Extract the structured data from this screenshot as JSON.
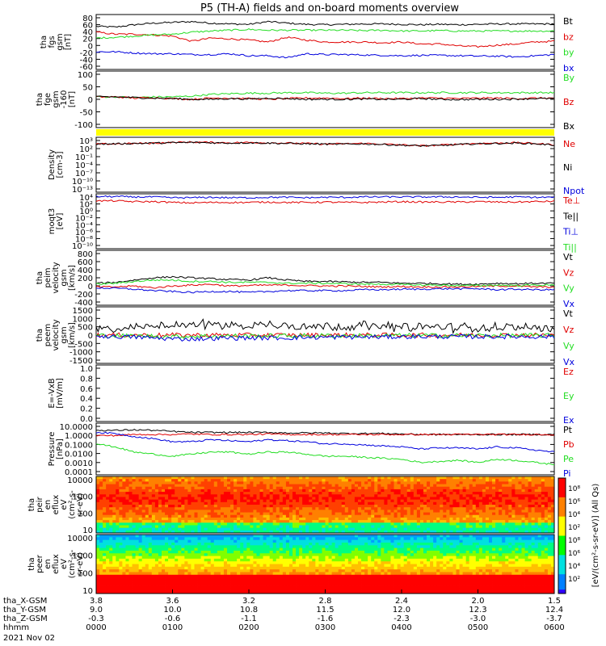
{
  "title": "P5 (TH-A) fields and on-board moments overview",
  "colors": {
    "black": "#000000",
    "red": "#e00000",
    "green": "#22dd22",
    "blue": "#0000dd",
    "yellow": "#ffff00"
  },
  "chart_data": [
    {
      "type": "line",
      "panel": "fgs",
      "ylabel": [
        "tha",
        "fgs",
        "gsm",
        "[nT]"
      ],
      "yticks": [
        "80",
        "60",
        "40",
        "20",
        "0",
        "-20",
        "-40",
        "-60"
      ],
      "ylim": [
        -60,
        80
      ],
      "series": [
        {
          "name": "Bt",
          "color": "#000000",
          "values": [
            50,
            48,
            54,
            58,
            60,
            62,
            58,
            56,
            55,
            62,
            58,
            55,
            54,
            55,
            56,
            56,
            55,
            54,
            55,
            54,
            55,
            56,
            56,
            56,
            56
          ]
        },
        {
          "name": "bz",
          "color": "#e00000",
          "values": [
            35,
            30,
            30,
            28,
            25,
            12,
            20,
            18,
            15,
            10,
            22,
            15,
            10,
            10,
            10,
            8,
            10,
            5,
            5,
            0,
            -2,
            2,
            5,
            10,
            12
          ]
        },
        {
          "name": "by",
          "color": "#22dd22",
          "values": [
            20,
            22,
            25,
            28,
            30,
            35,
            38,
            40,
            42,
            40,
            40,
            40,
            40,
            40,
            39,
            40,
            38,
            38,
            39,
            38,
            38,
            38,
            38,
            38,
            38
          ]
        },
        {
          "name": "bx",
          "color": "#0000dd",
          "values": [
            -15,
            -15,
            -18,
            -20,
            -20,
            -22,
            -22,
            -20,
            -25,
            -25,
            -30,
            -20,
            -22,
            -22,
            -23,
            -24,
            -25,
            -24,
            -24,
            -25,
            -26,
            -26,
            -28,
            -25,
            -22
          ]
        }
      ]
    },
    {
      "type": "line",
      "panel": "fge",
      "ylabel": [
        "tha",
        "fge",
        "gsm",
        "-160",
        "[nT]"
      ],
      "yticks": [
        "100",
        "50",
        "0",
        "-50",
        "-100"
      ],
      "ylim": [
        -130,
        100
      ],
      "series": [
        {
          "name": "By",
          "color": "#22dd22",
          "values": [
            -5,
            -5,
            -8,
            -5,
            -5,
            -2,
            5,
            8,
            10,
            10,
            12,
            12,
            10,
            10,
            12,
            12,
            12,
            12,
            12,
            12,
            12,
            12,
            12,
            12,
            12
          ]
        },
        {
          "name": "Bz",
          "color": "#e00000",
          "values": [
            -5,
            -5,
            -10,
            -8,
            -12,
            -15,
            -10,
            -10,
            -12,
            -15,
            -12,
            -10,
            -10,
            -12,
            -10,
            -12,
            -12,
            -10,
            -10,
            -12,
            -10,
            -10,
            -12,
            -10,
            -10
          ]
        },
        {
          "name": "Bx",
          "color": "#000000",
          "values": [
            -5,
            -5,
            -8,
            -10,
            -12,
            -15,
            -15,
            -12,
            -14,
            -10,
            -12,
            -15,
            -15,
            -15,
            -14,
            -15,
            -15,
            -12,
            -15,
            -16,
            -15,
            -15,
            -14,
            -12,
            -12
          ]
        }
      ]
    },
    {
      "type": "line",
      "panel": "density",
      "ylabel": [
        "Density",
        "[cm-3]"
      ],
      "yticks": [
        "10³",
        "10²",
        "10⁻¹",
        "10⁻⁴",
        "10⁻⁷",
        "10⁻¹⁰",
        "10⁻¹³"
      ],
      "ylim": [
        -13,
        3
      ],
      "log": true,
      "series": [
        {
          "name": "Ne",
          "color": "#e00000",
          "values": [
            1.0,
            1.1,
            1.2,
            1.3,
            1.5,
            1.6,
            1.5,
            1.4,
            1.5,
            1.4,
            1.3,
            1.2,
            1.0,
            1.1,
            1.2,
            1.0,
            0.8,
            0.5,
            0.7,
            1.0,
            1.2,
            1.3,
            1.4,
            1.2,
            0.8
          ]
        },
        {
          "name": "Ni",
          "color": "#000000",
          "values": [
            1.0,
            1.1,
            1.2,
            1.3,
            1.4,
            1.5,
            1.4,
            1.3,
            1.4,
            1.3,
            1.2,
            1.1,
            1.0,
            1.0,
            1.1,
            0.9,
            0.7,
            0.5,
            0.6,
            0.9,
            1.1,
            1.2,
            1.3,
            1.1,
            0.7
          ]
        },
        {
          "name": "Npot",
          "color": "#0000dd",
          "values": []
        }
      ]
    },
    {
      "type": "line",
      "panel": "moqt3",
      "ylabel": [
        "moqt3",
        "[eV]"
      ],
      "yticks": [
        "10⁴",
        "10²",
        "10⁰",
        "10⁻²",
        "10⁻⁴",
        "10⁻⁶",
        "10⁻⁸",
        "10⁻¹⁰"
      ],
      "ylim": [
        -10,
        4
      ],
      "log": true,
      "series": [
        {
          "name": "Te⊥",
          "color": "#e00000",
          "values": [
            2.2,
            2.2,
            2.0,
            2.0,
            1.8,
            1.7,
            1.8,
            1.8,
            1.8,
            1.9,
            1.8,
            1.8,
            1.9,
            1.8,
            1.8,
            1.9,
            2.0,
            1.9,
            1.9,
            1.9,
            2.0,
            1.9,
            1.9,
            2.0,
            2.1
          ]
        },
        {
          "name": "Te||",
          "color": "#000000",
          "values": []
        },
        {
          "name": "Ti⊥",
          "color": "#0000dd",
          "values": [
            3.3,
            3.3,
            3.2,
            3.2,
            3.0,
            3.0,
            3.1,
            3.0,
            3.0,
            3.1,
            3.1,
            3.0,
            3.1,
            3.1,
            3.2,
            3.2,
            3.2,
            3.2,
            3.2,
            3.2,
            3.1,
            3.1,
            3.2,
            3.1,
            3.1
          ]
        },
        {
          "name": "Ti||",
          "color": "#22dd22",
          "values": []
        }
      ]
    },
    {
      "type": "line",
      "panel": "peim",
      "ylabel": [
        "tha",
        "peim",
        "velocity",
        "gsm",
        "[km/s]"
      ],
      "yticks": [
        "800",
        "600",
        "400",
        "200",
        "0",
        "-200",
        "-400"
      ],
      "ylim": [
        -400,
        800
      ],
      "series": [
        {
          "name": "Vt",
          "color": "#000000",
          "values": [
            80,
            100,
            150,
            200,
            220,
            200,
            180,
            160,
            150,
            200,
            150,
            120,
            120,
            110,
            100,
            100,
            80,
            80,
            70,
            60,
            60,
            80,
            70,
            80,
            80
          ]
        },
        {
          "name": "Vz",
          "color": "#e00000",
          "values": [
            0,
            0,
            20,
            -20,
            20,
            40,
            60,
            20,
            30,
            40,
            40,
            30,
            20,
            20,
            10,
            0,
            10,
            0,
            0,
            0,
            10,
            20,
            20,
            0,
            0
          ]
        },
        {
          "name": "Vy",
          "color": "#22dd22",
          "values": [
            60,
            80,
            120,
            150,
            150,
            120,
            120,
            100,
            100,
            100,
            80,
            80,
            80,
            70,
            60,
            60,
            50,
            40,
            40,
            30,
            30,
            40,
            30,
            40,
            40
          ]
        },
        {
          "name": "Vx",
          "color": "#0000dd",
          "values": [
            -20,
            -30,
            -50,
            -80,
            -100,
            -120,
            -100,
            -100,
            -120,
            -100,
            -80,
            -80,
            -80,
            -80,
            -60,
            -60,
            -50,
            -50,
            -40,
            -40,
            -40,
            -60,
            -50,
            -60,
            -60
          ]
        }
      ]
    },
    {
      "type": "line",
      "panel": "peem",
      "ylabel": [
        "tha",
        "peem",
        "velocity",
        "gsm",
        "[km/s]"
      ],
      "yticks": [
        "1500",
        "1000",
        "500",
        "0",
        "-500",
        "-1000",
        "-1500"
      ],
      "ylim": [
        -1500,
        1500
      ],
      "series": [
        {
          "name": "Vt",
          "color": "#000000",
          "values": [
            100,
            150,
            200,
            300,
            400,
            400,
            400,
            350,
            300,
            400,
            350,
            300,
            300,
            300,
            300,
            300,
            250,
            250,
            250,
            200,
            200,
            250,
            200,
            200,
            200
          ]
        },
        {
          "name": "Vz",
          "color": "#e00000",
          "values": [
            0,
            0,
            0,
            0,
            0,
            0,
            0,
            0,
            0,
            0,
            0,
            0,
            0,
            0,
            0,
            0,
            0,
            0,
            0,
            0,
            0,
            0,
            0,
            0,
            0
          ]
        },
        {
          "name": "Vy",
          "color": "#22dd22",
          "values": [
            -20,
            -30,
            -50,
            -50,
            -80,
            -60,
            -50,
            -50,
            -40,
            -40,
            -40,
            -30,
            -30,
            -30,
            -30,
            -30,
            -20,
            -20,
            -20,
            -20,
            -20,
            -20,
            -20,
            -20,
            -20
          ]
        },
        {
          "name": "Vx",
          "color": "#0000dd",
          "values": [
            -50,
            -80,
            -100,
            -150,
            -200,
            -200,
            -180,
            -150,
            -150,
            -150,
            -150,
            -120,
            -120,
            -100,
            -100,
            -100,
            -80,
            -80,
            -80,
            -80,
            -80,
            -80,
            -80,
            -80,
            -80
          ]
        }
      ]
    },
    {
      "type": "line",
      "panel": "efield",
      "ylabel": [
        "E=-VxB",
        "[mV/m]"
      ],
      "yticks": [
        "1.0",
        "0.8",
        "0.6",
        "0.4",
        "0.2",
        "0.0"
      ],
      "ylim": [
        0,
        1
      ],
      "series": [
        {
          "name": "Ez",
          "color": "#e00000",
          "values": []
        },
        {
          "name": "Ey",
          "color": "#22dd22",
          "values": []
        },
        {
          "name": "Ex",
          "color": "#0000dd",
          "values": []
        }
      ]
    },
    {
      "type": "line",
      "panel": "pressure",
      "ylabel": [
        "Pressure",
        "[nPa]"
      ],
      "yticks": [
        "10.0000",
        "1.0000",
        "0.1000",
        "0.0100",
        "0.0010",
        "0.0001"
      ],
      "ylim": [
        -4,
        1
      ],
      "log": true,
      "series": [
        {
          "name": "Pt",
          "color": "#000000",
          "values": [
            0.3,
            0.3,
            0.35,
            0.3,
            0.2,
            0.1,
            0.1,
            0.1,
            0.1,
            0.1,
            0.05,
            0.05,
            0.05,
            0.0,
            0.0,
            0.0,
            -0.05,
            -0.1,
            -0.1,
            -0.1,
            -0.1,
            -0.1,
            -0.1,
            -0.1,
            -0.1
          ]
        },
        {
          "name": "Pb",
          "color": "#e00000",
          "values": [
            -0.2,
            -0.2,
            -0.1,
            -0.1,
            -0.1,
            -0.05,
            -0.1,
            -0.1,
            -0.1,
            -0.05,
            -0.1,
            -0.1,
            -0.1,
            -0.1,
            -0.1,
            -0.1,
            -0.1,
            -0.1,
            -0.1,
            -0.1,
            -0.1,
            -0.1,
            -0.1,
            -0.1,
            -0.1
          ]
        },
        {
          "name": "Pe",
          "color": "#22dd22",
          "values": [
            -1.0,
            -1.3,
            -1.8,
            -2.0,
            -2.2,
            -2.0,
            -1.8,
            -1.8,
            -2.0,
            -1.8,
            -1.8,
            -2.0,
            -2.2,
            -2.2,
            -2.3,
            -2.4,
            -2.5,
            -2.8,
            -2.7,
            -2.6,
            -2.8,
            -2.5,
            -2.6,
            -2.8,
            -3.0
          ]
        },
        {
          "name": "Pi",
          "color": "#0000dd",
          "values": [
            0.1,
            0.0,
            -0.3,
            -0.5,
            -0.8,
            -0.8,
            -0.6,
            -0.7,
            -0.8,
            -0.6,
            -0.7,
            -0.8,
            -1.0,
            -1.0,
            -1.1,
            -1.2,
            -1.3,
            -1.5,
            -1.4,
            -1.4,
            -1.5,
            -1.3,
            -1.4,
            -1.6,
            -1.8
          ]
        }
      ]
    },
    {
      "type": "heatmap",
      "panel": "peir",
      "ylabel": [
        "tha",
        "peir",
        "en",
        "eflux",
        "eV",
        "(cm²-s-",
        "sr-eV)"
      ],
      "yticks": [
        "10000",
        "1000",
        "100",
        "10"
      ],
      "ylim": [
        1,
        4.5
      ],
      "log": true
    },
    {
      "type": "heatmap",
      "panel": "peer",
      "ylabel": [
        "tha",
        "peer",
        "en",
        "eflux",
        "eV",
        "(cm²-s-",
        "sr-eV)"
      ],
      "yticks": [
        "10000",
        "1000",
        "100",
        "10"
      ],
      "ylim": [
        1,
        4.5
      ],
      "log": true
    }
  ],
  "colorbar": {
    "ticks_top": [
      "10⁸",
      "10⁶",
      "10⁴",
      "10²"
    ],
    "ticks_bottom": [
      "10⁸",
      "10⁶",
      "10⁴",
      "10²"
    ],
    "label": "[eV/(cm²-s-sr-eV)] (All Qs)"
  },
  "xaxis": {
    "rows": [
      {
        "label": "tha_X-GSM",
        "values": [
          "3.8",
          "3.6",
          "3.2",
          "2.8",
          "2.4",
          "2.0",
          "1.5"
        ]
      },
      {
        "label": "tha_Y-GSM",
        "values": [
          "9.0",
          "10.0",
          "10.8",
          "11.5",
          "12.0",
          "12.3",
          "12.4"
        ]
      },
      {
        "label": "tha_Z-GSM",
        "values": [
          "-0.3",
          "-0.6",
          "-1.1",
          "-1.6",
          "-2.3",
          "-3.0",
          "-3.7"
        ]
      },
      {
        "label": "hhmm",
        "values": [
          "0000",
          "0100",
          "0200",
          "0300",
          "0400",
          "0500",
          "0600"
        ]
      }
    ],
    "date": "2021 Nov 02"
  }
}
